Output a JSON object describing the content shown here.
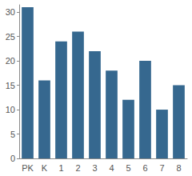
{
  "chart_data": {
    "type": "bar",
    "categories": [
      "PK",
      "K",
      "1",
      "2",
      "3",
      "4",
      "5",
      "6",
      "7",
      "8"
    ],
    "values": [
      31,
      16,
      24,
      26,
      22,
      18,
      12,
      20,
      10,
      15
    ],
    "color": "#36688f",
    "ylim": [
      0,
      31.5
    ],
    "yticks": [
      0,
      5,
      10,
      15,
      20,
      25,
      30
    ],
    "grid": false
  }
}
